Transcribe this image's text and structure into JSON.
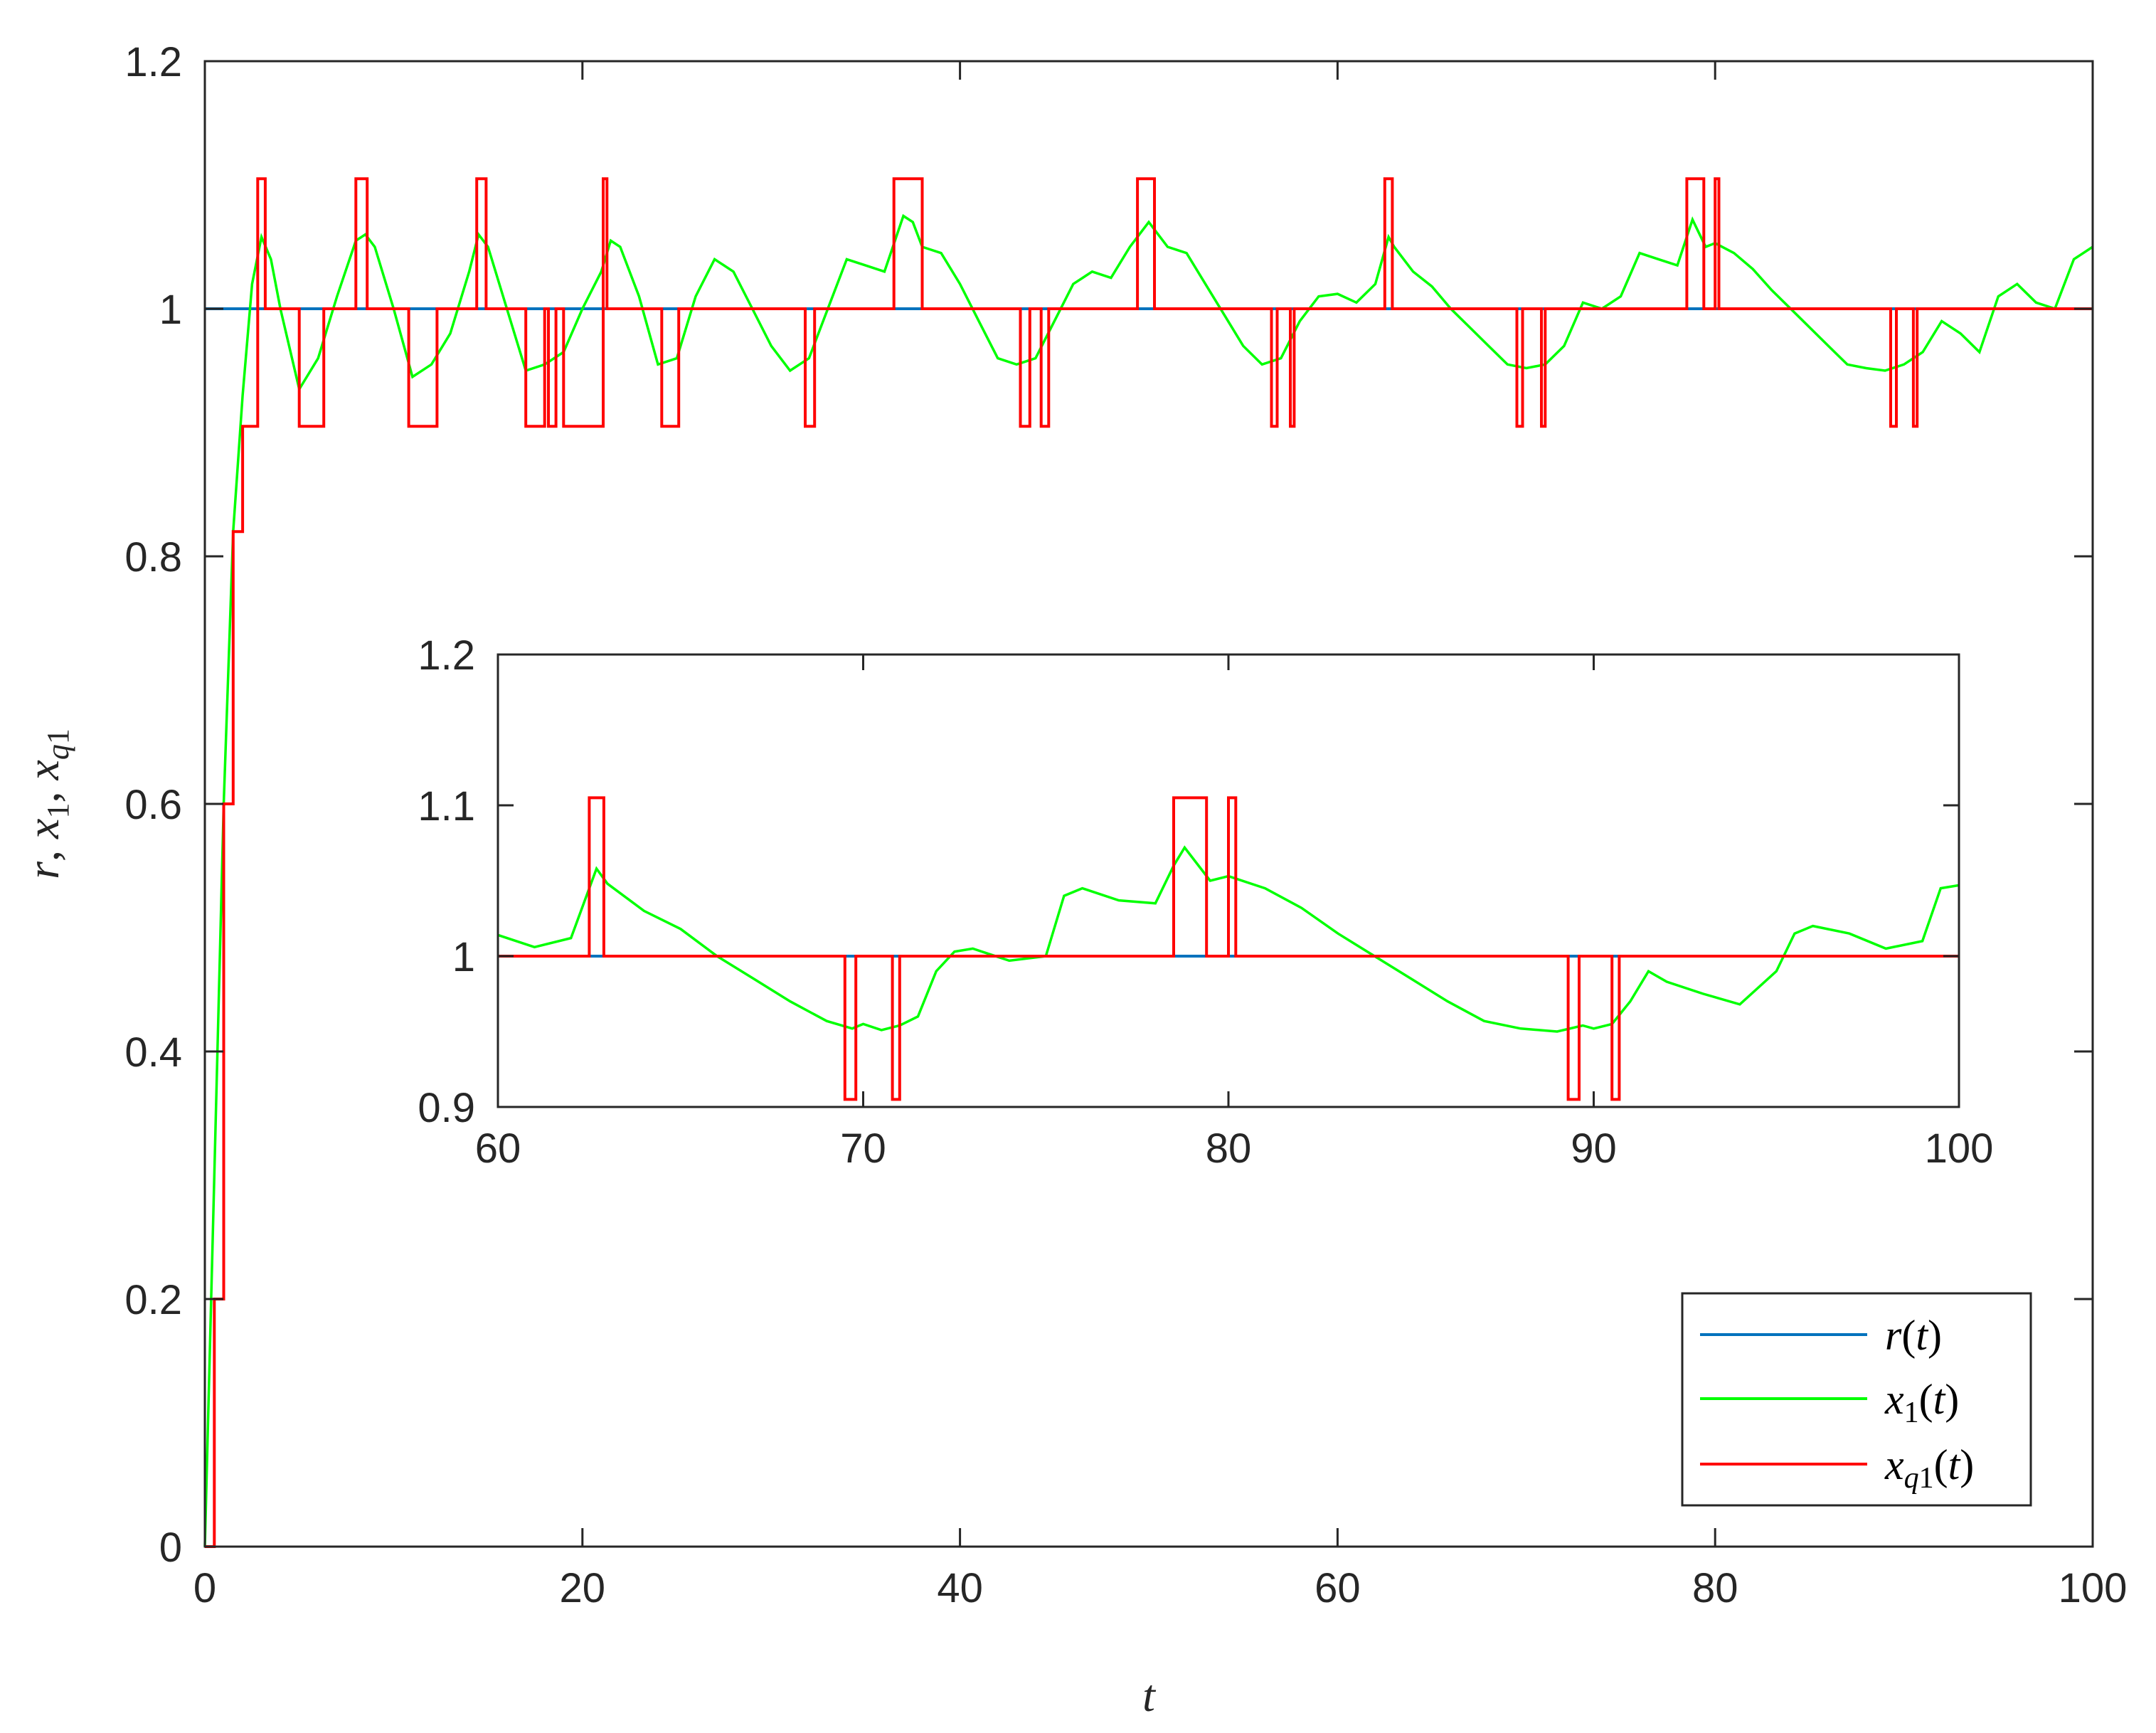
{
  "chart_data": [
    {
      "type": "line",
      "xlim": [
        0,
        100
      ],
      "ylim": [
        0,
        1.2
      ],
      "x_ticks": [
        "0",
        "20",
        "40",
        "60",
        "80",
        "100"
      ],
      "y_ticks": [
        "0",
        "0.2",
        "0.4",
        "0.6",
        "0.8",
        "1",
        "1.2"
      ],
      "xlabel": "t",
      "ylabel": "r, x1, xq1",
      "grid": false,
      "legend_position": "bottom-right",
      "legend": [
        "r(t)",
        "x1(t)",
        "xq1(t)"
      ],
      "colors": {
        "r": "#0072BD",
        "x1": "#00FF00",
        "xq1": "#FF0000"
      },
      "series": [
        {
          "name": "r(t)",
          "x": [
            0,
            100
          ],
          "y": [
            1,
            1
          ]
        },
        {
          "name": "x1(t)",
          "x": [
            0,
            0.5,
            1,
            1.5,
            2,
            2.5,
            3,
            3.5,
            4,
            5,
            6,
            7,
            8,
            8.5,
            9,
            10,
            11,
            12,
            13,
            14,
            14.5,
            15,
            16,
            17,
            18,
            19,
            20,
            21,
            21.5,
            22,
            23,
            24,
            25,
            26,
            27,
            28,
            29,
            30,
            31,
            32,
            33,
            34,
            35,
            36,
            37,
            37.5,
            38,
            39,
            40,
            41,
            42,
            43,
            44,
            45,
            46,
            47,
            48,
            49,
            50,
            51,
            52,
            53,
            54,
            55,
            56,
            57,
            58,
            59,
            60,
            61,
            62,
            62.7,
            63,
            64,
            65,
            66,
            67,
            68,
            69,
            70,
            71,
            72,
            73,
            74,
            75,
            76,
            77,
            78,
            78.8,
            79.5,
            80,
            81,
            82,
            83,
            84,
            85,
            86,
            87,
            88,
            89,
            90,
            91,
            92,
            93,
            94,
            95,
            96,
            97,
            98,
            99,
            100
          ],
          "y": [
            0,
            0.3,
            0.6,
            0.82,
            0.93,
            1.02,
            1.058,
            1.04,
            1.0,
            0.935,
            0.96,
            1.01,
            1.055,
            1.06,
            1.05,
            1.0,
            0.945,
            0.955,
            0.98,
            1.03,
            1.06,
            1.05,
            1.0,
            0.95,
            0.955,
            0.965,
            1.0,
            1.03,
            1.055,
            1.05,
            1.01,
            0.955,
            0.96,
            1.01,
            1.04,
            1.03,
            1.0,
            0.97,
            0.95,
            0.96,
            1.0,
            1.04,
            1.035,
            1.03,
            1.075,
            1.07,
            1.05,
            1.045,
            1.02,
            0.99,
            0.96,
            0.955,
            0.96,
            0.99,
            1.02,
            1.03,
            1.025,
            1.05,
            1.07,
            1.05,
            1.045,
            1.02,
            0.995,
            0.97,
            0.955,
            0.96,
            0.99,
            1.01,
            1.012,
            1.005,
            1.02,
            1.058,
            1.05,
            1.03,
            1.018,
            1.0,
            0.985,
            0.97,
            0.955,
            0.952,
            0.955,
            0.97,
            1.005,
            1.0,
            1.01,
            1.045,
            1.04,
            1.035,
            1.072,
            1.05,
            1.053,
            1.045,
            1.032,
            1.015,
            1.0,
            0.985,
            0.97,
            0.955,
            0.952,
            0.95,
            0.955,
            0.965,
            0.99,
            0.98,
            0.965,
            1.01,
            1.02,
            1.005,
            1.0,
            1.04,
            1.05
          ]
        },
        {
          "name": "xq1(t)",
          "x": [
            0,
            0.5,
            0.5,
            1,
            1,
            1.5,
            1.5,
            2,
            2,
            2.8,
            2.8,
            3.2,
            3.2,
            5,
            5,
            6.3,
            6.3,
            8,
            8,
            8.6,
            8.6,
            10.8,
            10.8,
            12.3,
            12.3,
            14.4,
            14.4,
            14.9,
            14.9,
            17,
            17,
            18,
            18,
            18.2,
            18.2,
            18.6,
            18.6,
            19,
            19,
            21.1,
            21.1,
            21.3,
            21.3,
            24.2,
            24.2,
            25.1,
            25.1,
            31.8,
            31.8,
            32.3,
            32.3,
            36.5,
            36.5,
            38,
            38,
            43.2,
            43.2,
            43.7,
            43.7,
            44.3,
            44.3,
            44.7,
            44.7,
            49.4,
            49.4,
            50.3,
            50.3,
            56.5,
            56.5,
            56.8,
            56.8,
            57.5,
            57.5,
            57.7,
            57.7,
            62.5,
            62.5,
            62.9,
            62.9,
            69.5,
            69.5,
            69.8,
            69.8,
            70.8,
            70.8,
            71,
            71,
            78.5,
            78.5,
            79.4,
            79.4,
            80,
            80,
            80.2,
            80.2,
            89.3,
            89.3,
            89.6,
            89.6,
            90.5,
            90.5,
            90.7,
            90.7,
            100
          ],
          "y": [
            0,
            0,
            0.2,
            0.2,
            0.6,
            0.6,
            0.82,
            0.82,
            0.905,
            0.905,
            1.105,
            1.105,
            1,
            1,
            0.905,
            0.905,
            1,
            1,
            1.105,
            1.105,
            1,
            1,
            0.905,
            0.905,
            1,
            1,
            1.105,
            1.105,
            1,
            1,
            0.905,
            0.905,
            1,
            1,
            0.905,
            0.905,
            1,
            1,
            0.905,
            0.905,
            1.105,
            1.105,
            1,
            1,
            0.905,
            0.905,
            1,
            1,
            0.905,
            0.905,
            1,
            1,
            1.105,
            1.105,
            1,
            1,
            0.905,
            0.905,
            1,
            1,
            0.905,
            0.905,
            1,
            1,
            1.105,
            1.105,
            1,
            1,
            0.905,
            0.905,
            1,
            1,
            0.905,
            0.905,
            1,
            1,
            1.105,
            1.105,
            1,
            1,
            0.905,
            0.905,
            1,
            1,
            0.905,
            0.905,
            1,
            1,
            1.105,
            1.105,
            1,
            1,
            1.105,
            1.105,
            1,
            1,
            0.905,
            0.905,
            1,
            1,
            0.905,
            0.905,
            1,
            1
          ]
        }
      ]
    },
    {
      "type": "line",
      "xlim": [
        60,
        100
      ],
      "ylim": [
        0.9,
        1.2
      ],
      "x_ticks": [
        "60",
        "70",
        "80",
        "90",
        "100"
      ],
      "y_ticks": [
        "0.9",
        "1",
        "1.1",
        "1.2"
      ],
      "grid": false,
      "series": [
        {
          "name": "r(t)",
          "x": [
            60,
            100
          ],
          "y": [
            1,
            1
          ]
        },
        {
          "name": "x1(t)",
          "x": [
            60,
            61,
            62,
            62.7,
            63,
            64,
            65,
            66,
            67,
            68,
            69,
            69.7,
            70,
            70.5,
            71,
            71.5,
            72,
            72.5,
            73,
            74,
            75,
            75.5,
            76,
            77,
            78,
            78.5,
            78.8,
            79.5,
            80,
            81,
            82,
            83,
            84,
            85,
            86,
            87,
            88,
            89,
            89.7,
            90,
            90.5,
            91,
            91.5,
            92,
            93,
            94,
            95,
            95.5,
            96,
            97,
            98,
            99,
            99.5,
            100
          ],
          "y": [
            1.014,
            1.006,
            1.012,
            1.058,
            1.048,
            1.03,
            1.018,
            1.0,
            0.985,
            0.97,
            0.957,
            0.952,
            0.955,
            0.951,
            0.954,
            0.96,
            0.99,
            1.003,
            1.005,
            0.997,
            1.0,
            1.04,
            1.045,
            1.037,
            1.035,
            1.06,
            1.072,
            1.05,
            1.053,
            1.045,
            1.032,
            1.015,
            1.0,
            0.985,
            0.97,
            0.957,
            0.952,
            0.95,
            0.954,
            0.952,
            0.955,
            0.97,
            0.99,
            0.983,
            0.975,
            0.968,
            0.99,
            1.015,
            1.02,
            1.015,
            1.005,
            1.01,
            1.045,
            1.047
          ]
        },
        {
          "name": "xq1(t)",
          "x": [
            60,
            62.5,
            62.5,
            62.9,
            62.9,
            69.5,
            69.5,
            69.8,
            69.8,
            70.8,
            70.8,
            71,
            71,
            78.5,
            78.5,
            79.4,
            79.4,
            80,
            80,
            80.2,
            80.2,
            89.3,
            89.3,
            89.6,
            89.6,
            90.5,
            90.5,
            90.7,
            90.7,
            100
          ],
          "y": [
            1,
            1,
            1.105,
            1.105,
            1,
            1,
            0.905,
            0.905,
            1,
            1,
            0.905,
            0.905,
            1,
            1,
            1.105,
            1.105,
            1,
            1,
            1.105,
            1.105,
            1,
            1,
            0.905,
            0.905,
            1,
            1,
            0.905,
            0.905,
            1,
            1
          ]
        }
      ]
    }
  ]
}
